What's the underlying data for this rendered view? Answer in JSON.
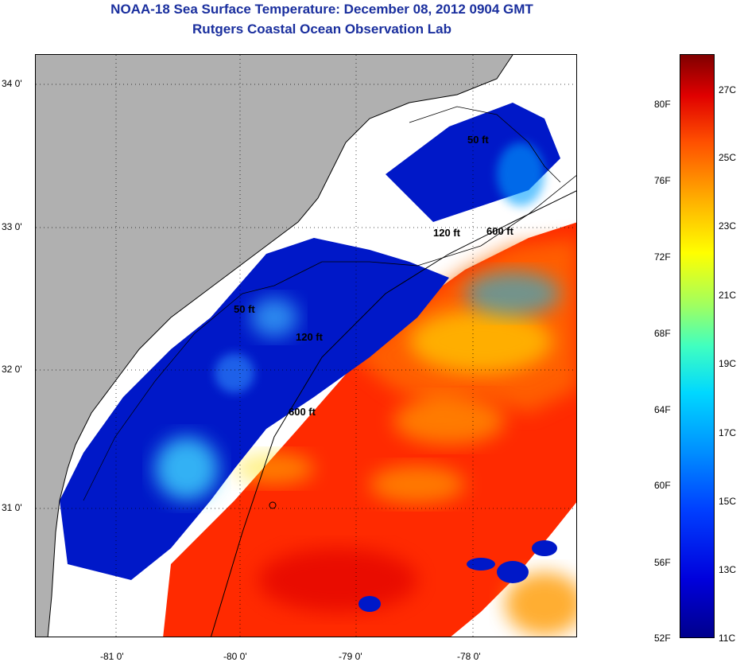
{
  "header": {
    "title": "NOAA-18 Sea Surface Temperature:  December 08, 2012 0904 GMT",
    "subtitle": "Rutgers Coastal Ocean Observation Lab"
  },
  "map": {
    "latitude_labels": [
      "34 0'",
      "33 0'",
      "32 0'",
      "31 0'"
    ],
    "longitude_labels": [
      "-81 0'",
      "-80 0'",
      "-79 0'",
      "-78 0'"
    ],
    "contour_labels": [
      "50 ft",
      "120 ft",
      "600 ft",
      "50 ft",
      "120 ft",
      "600 ft"
    ]
  },
  "colorbar": {
    "fahrenheit_labels": [
      "80F",
      "76F",
      "72F",
      "68F",
      "64F",
      "60F",
      "56F",
      "52F"
    ],
    "celsius_labels": [
      "27C",
      "25C",
      "23C",
      "21C",
      "19C",
      "17C",
      "15C",
      "13C",
      "11C"
    ]
  },
  "colors": {
    "title": "#1a2f9e",
    "land": "#b0b0b0",
    "cloud": "#ffffff",
    "cold": "#0018c8",
    "warm": "#ff2a00"
  }
}
